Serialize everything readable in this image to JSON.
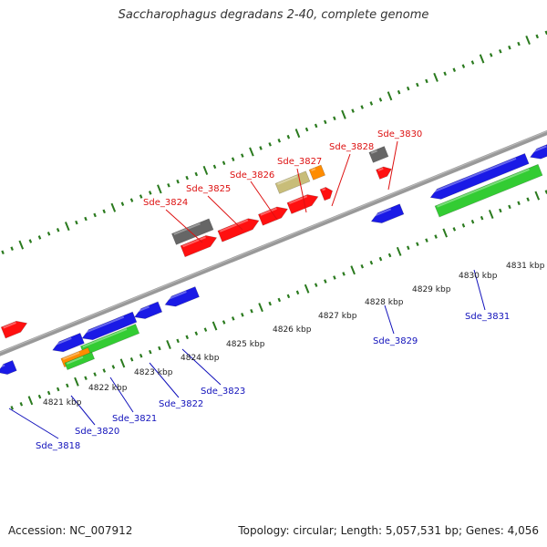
{
  "title": "Saccharophagus degradans 2-40, complete genome",
  "footer": {
    "accession": "Accession: NC_007912",
    "summary": "Topology: circular; Length: 5,057,531 bp; Genes: 4,056"
  },
  "colors": {
    "backbone": "#888888",
    "tick": "#2a7a1e",
    "red_gene": "#ff1010",
    "blue_gene": "#1a1ae6",
    "green_gene": "#33cc33",
    "gray_gene": "#666666",
    "khaki_gene": "#c8bd79",
    "orange_gene": "#ff8c00",
    "forward_label": "#dd1111",
    "reverse_label": "#1111bb",
    "scale_label": "#222222"
  },
  "scale_labels": [
    "4821 kbp",
    "4822 kbp",
    "4823 kbp",
    "4824 kbp",
    "4825 kbp",
    "4826 kbp",
    "4827 kbp",
    "4828 kbp",
    "4829 kbp",
    "4830 kbp",
    "4831 kbp"
  ],
  "forward_labels": [
    "Sde_3824",
    "Sde_3825",
    "Sde_3826",
    "Sde_3827",
    "Sde_3828",
    "Sde_3830"
  ],
  "reverse_labels": [
    "Sde_3818",
    "Sde_3820",
    "Sde_3821",
    "Sde_3822",
    "Sde_3823",
    "Sde_3829",
    "Sde_3831"
  ]
}
